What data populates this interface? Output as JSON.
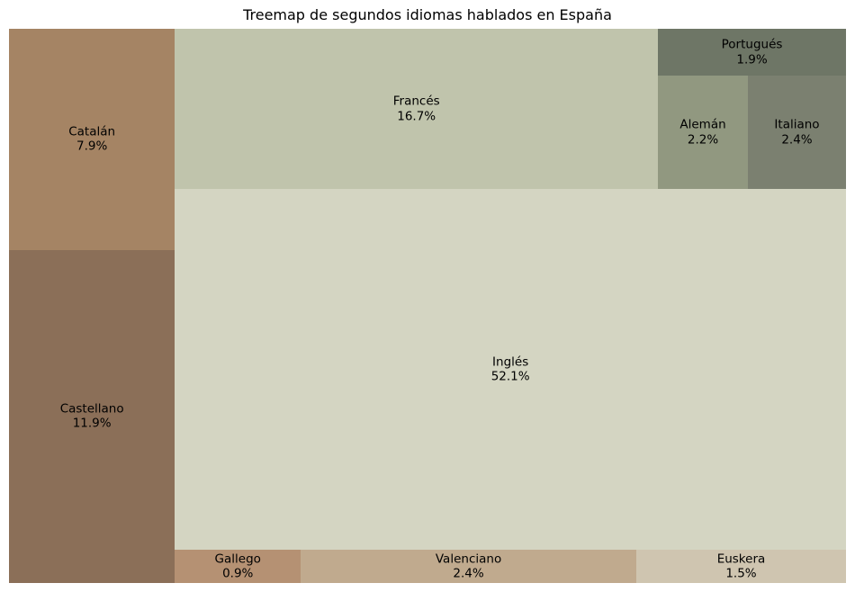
{
  "chart_data": {
    "type": "treemap",
    "title": "Treemap de segundos idiomas hablados en España",
    "items": [
      {
        "label": "Catalán",
        "value": 7.9,
        "value_label": "7.9%",
        "color": "#A58464"
      },
      {
        "label": "Castellano",
        "value": 11.9,
        "value_label": "11.9%",
        "color": "#8B6F58"
      },
      {
        "label": "Francés",
        "value": 16.7,
        "value_label": "16.7%",
        "color": "#C0C4AC"
      },
      {
        "label": "Portugués",
        "value": 1.9,
        "value_label": "1.9%",
        "color": "#6E7666"
      },
      {
        "label": "Alemán",
        "value": 2.2,
        "value_label": "2.2%",
        "color": "#919880"
      },
      {
        "label": "Italiano",
        "value": 2.4,
        "value_label": "2.4%",
        "color": "#7B8070"
      },
      {
        "label": "Inglés",
        "value": 52.1,
        "value_label": "52.1%",
        "color": "#D4D5C2"
      },
      {
        "label": "Gallego",
        "value": 0.9,
        "value_label": "0.9%",
        "color": "#B59173"
      },
      {
        "label": "Valenciano",
        "value": 2.4,
        "value_label": "2.4%",
        "color": "#C0AA8E"
      },
      {
        "label": "Euskera",
        "value": 1.5,
        "value_label": "1.5%",
        "color": "#CFC5B0"
      }
    ]
  }
}
